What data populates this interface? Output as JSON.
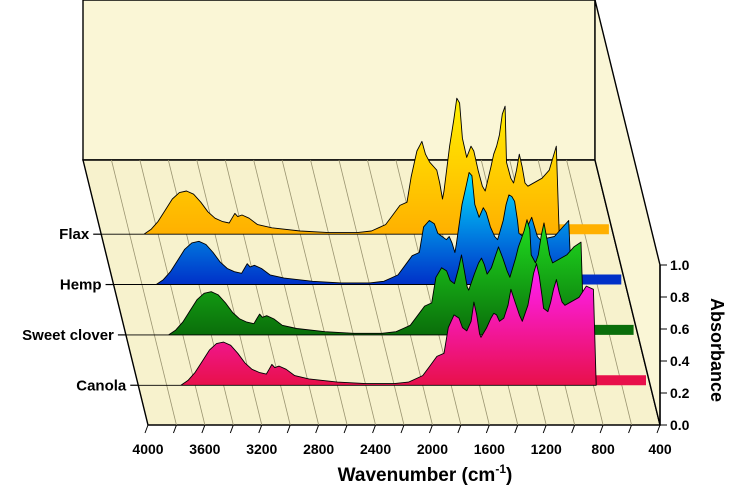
{
  "chart_data": {
    "type": "area",
    "style": "3d-waterfall",
    "xlabel_main": "Wavenumber (cm",
    "xlabel_sup": "-1",
    "xlabel_close": ")",
    "zlabel": "Absorbance",
    "xlim": [
      4000,
      400
    ],
    "x_reversed": true,
    "x_ticks": [
      "4000",
      "3600",
      "3200",
      "2800",
      "2400",
      "2000",
      "1600",
      "1200",
      "800",
      "400"
    ],
    "zlim": [
      0,
      1
    ],
    "z_ticks": [
      "0.0",
      "0.2",
      "0.4",
      "0.6",
      "0.8",
      "1.0"
    ],
    "grid": true,
    "series": [
      {
        "name": "Flax",
        "color": "#FFB000",
        "color_top": "#FFF000",
        "points": [
          [
            4000,
            0
          ],
          [
            3700,
            0
          ],
          [
            3650,
            0.03
          ],
          [
            3600,
            0.08
          ],
          [
            3550,
            0.15
          ],
          [
            3500,
            0.22
          ],
          [
            3450,
            0.26
          ],
          [
            3400,
            0.27
          ],
          [
            3350,
            0.25
          ],
          [
            3300,
            0.2
          ],
          [
            3250,
            0.14
          ],
          [
            3200,
            0.1
          ],
          [
            3150,
            0.08
          ],
          [
            3100,
            0.07
          ],
          [
            3080,
            0.1
          ],
          [
            3060,
            0.13
          ],
          [
            3040,
            0.11
          ],
          [
            3010,
            0.12
          ],
          [
            2960,
            0.1
          ],
          [
            2900,
            0.06
          ],
          [
            2800,
            0.04
          ],
          [
            2600,
            0.02
          ],
          [
            2400,
            0.01
          ],
          [
            2200,
            0.01
          ],
          [
            2100,
            0.02
          ],
          [
            2050,
            0.04
          ],
          [
            2000,
            0.06
          ],
          [
            1950,
            0.12
          ],
          [
            1900,
            0.18
          ],
          [
            1850,
            0.2
          ],
          [
            1820,
            0.36
          ],
          [
            1780,
            0.52
          ],
          [
            1745,
            0.58
          ],
          [
            1720,
            0.5
          ],
          [
            1690,
            0.45
          ],
          [
            1660,
            0.42
          ],
          [
            1640,
            0.4
          ],
          [
            1620,
            0.32
          ],
          [
            1600,
            0.22
          ],
          [
            1590,
            0.27
          ],
          [
            1550,
            0.55
          ],
          [
            1520,
            0.72
          ],
          [
            1500,
            0.85
          ],
          [
            1480,
            0.82
          ],
          [
            1460,
            0.6
          ],
          [
            1430,
            0.48
          ],
          [
            1400,
            0.55
          ],
          [
            1380,
            0.52
          ],
          [
            1350,
            0.4
          ],
          [
            1320,
            0.3
          ],
          [
            1300,
            0.27
          ],
          [
            1260,
            0.42
          ],
          [
            1240,
            0.5
          ],
          [
            1220,
            0.55
          ],
          [
            1200,
            0.62
          ],
          [
            1180,
            0.75
          ],
          [
            1160,
            0.8
          ],
          [
            1150,
            0.45
          ],
          [
            1120,
            0.35
          ],
          [
            1100,
            0.32
          ],
          [
            1080,
            0.4
          ],
          [
            1060,
            0.5
          ],
          [
            1040,
            0.42
          ],
          [
            1020,
            0.32
          ],
          [
            1000,
            0.3
          ],
          [
            900,
            0.35
          ],
          [
            850,
            0.4
          ],
          [
            800,
            0.55
          ],
          [
            780,
            0.0
          ]
        ]
      },
      {
        "name": "Hemp",
        "color": "#0030C8",
        "color_top": "#00E0FF",
        "points": [
          [
            4000,
            0
          ],
          [
            3700,
            0
          ],
          [
            3650,
            0.03
          ],
          [
            3600,
            0.08
          ],
          [
            3550,
            0.15
          ],
          [
            3500,
            0.22
          ],
          [
            3450,
            0.26
          ],
          [
            3400,
            0.27
          ],
          [
            3350,
            0.25
          ],
          [
            3300,
            0.2
          ],
          [
            3250,
            0.14
          ],
          [
            3200,
            0.1
          ],
          [
            3150,
            0.08
          ],
          [
            3100,
            0.07
          ],
          [
            3080,
            0.1
          ],
          [
            3060,
            0.13
          ],
          [
            3040,
            0.11
          ],
          [
            3010,
            0.12
          ],
          [
            2960,
            0.1
          ],
          [
            2900,
            0.06
          ],
          [
            2800,
            0.04
          ],
          [
            2600,
            0.02
          ],
          [
            2400,
            0.01
          ],
          [
            2200,
            0.01
          ],
          [
            2100,
            0.02
          ],
          [
            2050,
            0.04
          ],
          [
            2000,
            0.06
          ],
          [
            1950,
            0.12
          ],
          [
            1900,
            0.18
          ],
          [
            1850,
            0.2
          ],
          [
            1820,
            0.36
          ],
          [
            1780,
            0.4
          ],
          [
            1745,
            0.38
          ],
          [
            1720,
            0.32
          ],
          [
            1690,
            0.3
          ],
          [
            1660,
            0.28
          ],
          [
            1640,
            0.3
          ],
          [
            1620,
            0.26
          ],
          [
            1600,
            0.2
          ],
          [
            1590,
            0.25
          ],
          [
            1550,
            0.5
          ],
          [
            1520,
            0.62
          ],
          [
            1500,
            0.7
          ],
          [
            1480,
            0.68
          ],
          [
            1460,
            0.5
          ],
          [
            1430,
            0.42
          ],
          [
            1400,
            0.48
          ],
          [
            1380,
            0.45
          ],
          [
            1350,
            0.36
          ],
          [
            1320,
            0.3
          ],
          [
            1300,
            0.28
          ],
          [
            1260,
            0.4
          ],
          [
            1240,
            0.5
          ],
          [
            1220,
            0.56
          ],
          [
            1200,
            0.55
          ],
          [
            1180,
            0.52
          ],
          [
            1160,
            0.4
          ],
          [
            1150,
            0.32
          ],
          [
            1120,
            0.3
          ],
          [
            1100,
            0.32
          ],
          [
            1080,
            0.38
          ],
          [
            1060,
            0.42
          ],
          [
            1040,
            0.36
          ],
          [
            1020,
            0.3
          ],
          [
            1000,
            0.28
          ],
          [
            900,
            0.3
          ],
          [
            850,
            0.35
          ],
          [
            800,
            0.4
          ],
          [
            780,
            0.0
          ]
        ]
      },
      {
        "name": "Sweet clover",
        "color": "#0A6E0A",
        "color_top": "#20E020",
        "points": [
          [
            4000,
            0
          ],
          [
            3700,
            0
          ],
          [
            3650,
            0.03
          ],
          [
            3600,
            0.08
          ],
          [
            3550,
            0.15
          ],
          [
            3500,
            0.22
          ],
          [
            3450,
            0.26
          ],
          [
            3400,
            0.27
          ],
          [
            3350,
            0.25
          ],
          [
            3300,
            0.2
          ],
          [
            3250,
            0.14
          ],
          [
            3200,
            0.1
          ],
          [
            3150,
            0.08
          ],
          [
            3100,
            0.07
          ],
          [
            3080,
            0.1
          ],
          [
            3060,
            0.13
          ],
          [
            3040,
            0.11
          ],
          [
            3010,
            0.12
          ],
          [
            2960,
            0.1
          ],
          [
            2900,
            0.06
          ],
          [
            2800,
            0.04
          ],
          [
            2600,
            0.02
          ],
          [
            2400,
            0.01
          ],
          [
            2200,
            0.01
          ],
          [
            2100,
            0.02
          ],
          [
            2050,
            0.04
          ],
          [
            2000,
            0.06
          ],
          [
            1950,
            0.12
          ],
          [
            1900,
            0.18
          ],
          [
            1850,
            0.2
          ],
          [
            1820,
            0.36
          ],
          [
            1780,
            0.42
          ],
          [
            1745,
            0.4
          ],
          [
            1720,
            0.34
          ],
          [
            1690,
            0.32
          ],
          [
            1660,
            0.42
          ],
          [
            1640,
            0.5
          ],
          [
            1620,
            0.4
          ],
          [
            1600,
            0.3
          ],
          [
            1590,
            0.28
          ],
          [
            1550,
            0.38
          ],
          [
            1520,
            0.45
          ],
          [
            1500,
            0.48
          ],
          [
            1480,
            0.44
          ],
          [
            1460,
            0.38
          ],
          [
            1430,
            0.42
          ],
          [
            1400,
            0.5
          ],
          [
            1380,
            0.55
          ],
          [
            1350,
            0.48
          ],
          [
            1320,
            0.4
          ],
          [
            1300,
            0.36
          ],
          [
            1260,
            0.48
          ],
          [
            1240,
            0.55
          ],
          [
            1220,
            0.6
          ],
          [
            1200,
            0.65
          ],
          [
            1180,
            0.72
          ],
          [
            1160,
            0.66
          ],
          [
            1150,
            0.5
          ],
          [
            1120,
            0.45
          ],
          [
            1100,
            0.5
          ],
          [
            1080,
            0.62
          ],
          [
            1060,
            0.7
          ],
          [
            1040,
            0.6
          ],
          [
            1020,
            0.5
          ],
          [
            1000,
            0.45
          ],
          [
            900,
            0.5
          ],
          [
            850,
            0.55
          ],
          [
            800,
            0.58
          ],
          [
            780,
            0.0
          ]
        ]
      },
      {
        "name": "Canola",
        "color": "#E8104A",
        "color_top": "#FF20FF",
        "points": [
          [
            4000,
            0
          ],
          [
            3700,
            0
          ],
          [
            3650,
            0.03
          ],
          [
            3600,
            0.08
          ],
          [
            3550,
            0.15
          ],
          [
            3500,
            0.22
          ],
          [
            3450,
            0.26
          ],
          [
            3400,
            0.27
          ],
          [
            3350,
            0.25
          ],
          [
            3300,
            0.2
          ],
          [
            3250,
            0.14
          ],
          [
            3200,
            0.1
          ],
          [
            3150,
            0.08
          ],
          [
            3100,
            0.07
          ],
          [
            3080,
            0.1
          ],
          [
            3060,
            0.13
          ],
          [
            3040,
            0.11
          ],
          [
            3010,
            0.12
          ],
          [
            2960,
            0.1
          ],
          [
            2900,
            0.06
          ],
          [
            2800,
            0.04
          ],
          [
            2600,
            0.02
          ],
          [
            2400,
            0.01
          ],
          [
            2200,
            0.01
          ],
          [
            2100,
            0.02
          ],
          [
            2050,
            0.04
          ],
          [
            2000,
            0.06
          ],
          [
            1950,
            0.12
          ],
          [
            1900,
            0.18
          ],
          [
            1850,
            0.2
          ],
          [
            1820,
            0.36
          ],
          [
            1780,
            0.44
          ],
          [
            1745,
            0.42
          ],
          [
            1720,
            0.36
          ],
          [
            1690,
            0.34
          ],
          [
            1660,
            0.4
          ],
          [
            1640,
            0.52
          ],
          [
            1620,
            0.44
          ],
          [
            1600,
            0.32
          ],
          [
            1590,
            0.3
          ],
          [
            1550,
            0.36
          ],
          [
            1520,
            0.42
          ],
          [
            1500,
            0.45
          ],
          [
            1480,
            0.44
          ],
          [
            1460,
            0.4
          ],
          [
            1430,
            0.42
          ],
          [
            1400,
            0.5
          ],
          [
            1380,
            0.6
          ],
          [
            1350,
            0.52
          ],
          [
            1320,
            0.44
          ],
          [
            1300,
            0.4
          ],
          [
            1260,
            0.5
          ],
          [
            1240,
            0.6
          ],
          [
            1220,
            0.7
          ],
          [
            1200,
            0.76
          ],
          [
            1180,
            0.68
          ],
          [
            1160,
            0.55
          ],
          [
            1150,
            0.48
          ],
          [
            1120,
            0.46
          ],
          [
            1100,
            0.52
          ],
          [
            1080,
            0.6
          ],
          [
            1060,
            0.66
          ],
          [
            1040,
            0.58
          ],
          [
            1020,
            0.52
          ],
          [
            1000,
            0.5
          ],
          [
            900,
            0.55
          ],
          [
            850,
            0.62
          ],
          [
            800,
            0.6
          ],
          [
            780,
            0.0
          ]
        ]
      }
    ]
  }
}
